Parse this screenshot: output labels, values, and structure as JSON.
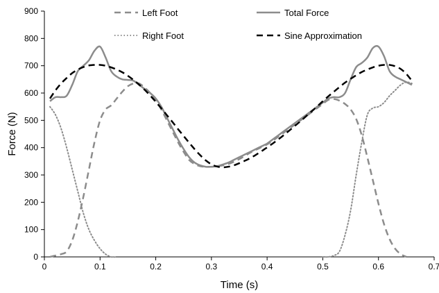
{
  "chart_data": {
    "type": "line",
    "title": "",
    "xlabel": "Time (s)",
    "ylabel": "Force (N)",
    "xlim": [
      0,
      0.7
    ],
    "ylim": [
      0,
      900
    ],
    "xticks": [
      0,
      0.1,
      0.2,
      0.3,
      0.4,
      0.5,
      0.6,
      0.7
    ],
    "yticks": [
      0,
      100,
      200,
      300,
      400,
      500,
      600,
      700,
      800,
      900
    ],
    "xtick_labels": [
      "0",
      "0.1",
      "0.2",
      "0.3",
      "0.4",
      "0.5",
      "0.6",
      "0.7"
    ],
    "ytick_labels": [
      "0",
      "100",
      "200",
      "300",
      "400",
      "500",
      "600",
      "700",
      "800",
      "900"
    ],
    "grid": false,
    "legend_position": "top",
    "series": [
      {
        "name": "Left Foot",
        "color": "#8c8c8c",
        "style": "dashed",
        "x": [
          0.01,
          0.02,
          0.03,
          0.04,
          0.05,
          0.06,
          0.07,
          0.08,
          0.09,
          0.1,
          0.11,
          0.12,
          0.13,
          0.14,
          0.15,
          0.16,
          0.17,
          0.18,
          0.19,
          0.2,
          0.21,
          0.22,
          0.23,
          0.24,
          0.25,
          0.26,
          0.27,
          0.28,
          0.29,
          0.3,
          0.31,
          0.32,
          0.33,
          0.34,
          0.35,
          0.36,
          0.37,
          0.38,
          0.39,
          0.4,
          0.41,
          0.42,
          0.43,
          0.44,
          0.45,
          0.46,
          0.47,
          0.48,
          0.49,
          0.5,
          0.51,
          0.52,
          0.53,
          0.54,
          0.55,
          0.56,
          0.57,
          0.58,
          0.59,
          0.6,
          0.61,
          0.62,
          0.63,
          0.64,
          0.65
        ],
        "y": [
          0,
          5,
          10,
          20,
          60,
          130,
          220,
          320,
          420,
          500,
          540,
          555,
          580,
          605,
          625,
          635,
          635,
          620,
          600,
          575,
          540,
          500,
          460,
          420,
          385,
          355,
          340,
          332,
          330,
          330,
          332,
          335,
          340,
          348,
          358,
          370,
          382,
          392,
          402,
          412,
          425,
          440,
          455,
          470,
          485,
          500,
          515,
          530,
          545,
          560,
          575,
          578,
          572,
          560,
          540,
          505,
          445,
          365,
          280,
          195,
          120,
          65,
          30,
          10,
          0
        ]
      },
      {
        "name": "Right Foot",
        "color": "#8c8c8c",
        "style": "dotted",
        "x": [
          0.01,
          0.02,
          0.03,
          0.04,
          0.05,
          0.06,
          0.07,
          0.08,
          0.09,
          0.1,
          0.11,
          0.12,
          0.13,
          0.5,
          0.51,
          0.52,
          0.53,
          0.54,
          0.55,
          0.56,
          0.57,
          0.58,
          0.59,
          0.6,
          0.61,
          0.62,
          0.63,
          0.64,
          0.65,
          0.66
        ],
        "y": [
          550,
          520,
          470,
          400,
          320,
          240,
          160,
          100,
          60,
          30,
          10,
          0,
          0,
          0,
          0,
          5,
          20,
          80,
          170,
          300,
          420,
          520,
          545,
          550,
          565,
          590,
          610,
          630,
          640,
          635
        ]
      },
      {
        "name": "Total Force",
        "color": "#8c8c8c",
        "style": "solid",
        "x": [
          0.01,
          0.02,
          0.03,
          0.04,
          0.05,
          0.06,
          0.07,
          0.08,
          0.09,
          0.1,
          0.11,
          0.12,
          0.13,
          0.14,
          0.15,
          0.16,
          0.17,
          0.18,
          0.19,
          0.2,
          0.21,
          0.22,
          0.23,
          0.24,
          0.25,
          0.26,
          0.27,
          0.28,
          0.29,
          0.3,
          0.31,
          0.32,
          0.33,
          0.34,
          0.35,
          0.36,
          0.37,
          0.38,
          0.39,
          0.4,
          0.41,
          0.42,
          0.43,
          0.44,
          0.45,
          0.46,
          0.47,
          0.48,
          0.49,
          0.5,
          0.51,
          0.52,
          0.53,
          0.54,
          0.55,
          0.56,
          0.57,
          0.58,
          0.59,
          0.6,
          0.61,
          0.62,
          0.63,
          0.64,
          0.65,
          0.66
        ],
        "y": [
          570,
          585,
          585,
          590,
          630,
          680,
          700,
          720,
          755,
          770,
          730,
          680,
          660,
          650,
          648,
          645,
          630,
          615,
          600,
          580,
          550,
          510,
          470,
          430,
          395,
          365,
          345,
          335,
          330,
          330,
          332,
          338,
          345,
          355,
          365,
          375,
          385,
          395,
          405,
          415,
          430,
          445,
          460,
          475,
          490,
          505,
          520,
          535,
          550,
          565,
          580,
          585,
          585,
          600,
          650,
          695,
          710,
          730,
          765,
          770,
          735,
          680,
          660,
          650,
          640,
          630
        ]
      },
      {
        "name": "Sine Approximation",
        "color": "#000000",
        "style": "dashed",
        "x": [
          0.01,
          0.02,
          0.03,
          0.04,
          0.05,
          0.06,
          0.07,
          0.08,
          0.09,
          0.1,
          0.11,
          0.12,
          0.13,
          0.14,
          0.15,
          0.16,
          0.17,
          0.18,
          0.19,
          0.2,
          0.21,
          0.22,
          0.23,
          0.24,
          0.25,
          0.26,
          0.27,
          0.28,
          0.29,
          0.3,
          0.31,
          0.32,
          0.33,
          0.34,
          0.35,
          0.36,
          0.37,
          0.38,
          0.39,
          0.4,
          0.41,
          0.42,
          0.43,
          0.44,
          0.45,
          0.46,
          0.47,
          0.48,
          0.49,
          0.5,
          0.51,
          0.52,
          0.53,
          0.54,
          0.55,
          0.56,
          0.57,
          0.58,
          0.59,
          0.6,
          0.61,
          0.62,
          0.63,
          0.64,
          0.65,
          0.66
        ],
        "y": [
          580,
          610,
          635,
          655,
          673,
          686,
          695,
          701,
          703,
          703,
          700,
          694,
          686,
          676,
          663,
          648,
          631,
          612,
          591,
          568,
          544,
          519,
          494,
          468,
          443,
          418,
          394,
          372,
          353,
          339,
          331,
          328,
          330,
          335,
          343,
          352,
          362,
          374,
          387,
          401,
          415,
          430,
          446,
          463,
          480,
          497,
          515,
          533,
          551,
          570,
          588,
          605,
          622,
          638,
          652,
          665,
          677,
          686,
          694,
          700,
          703,
          703,
          698,
          688,
          670,
          645
        ]
      }
    ]
  }
}
